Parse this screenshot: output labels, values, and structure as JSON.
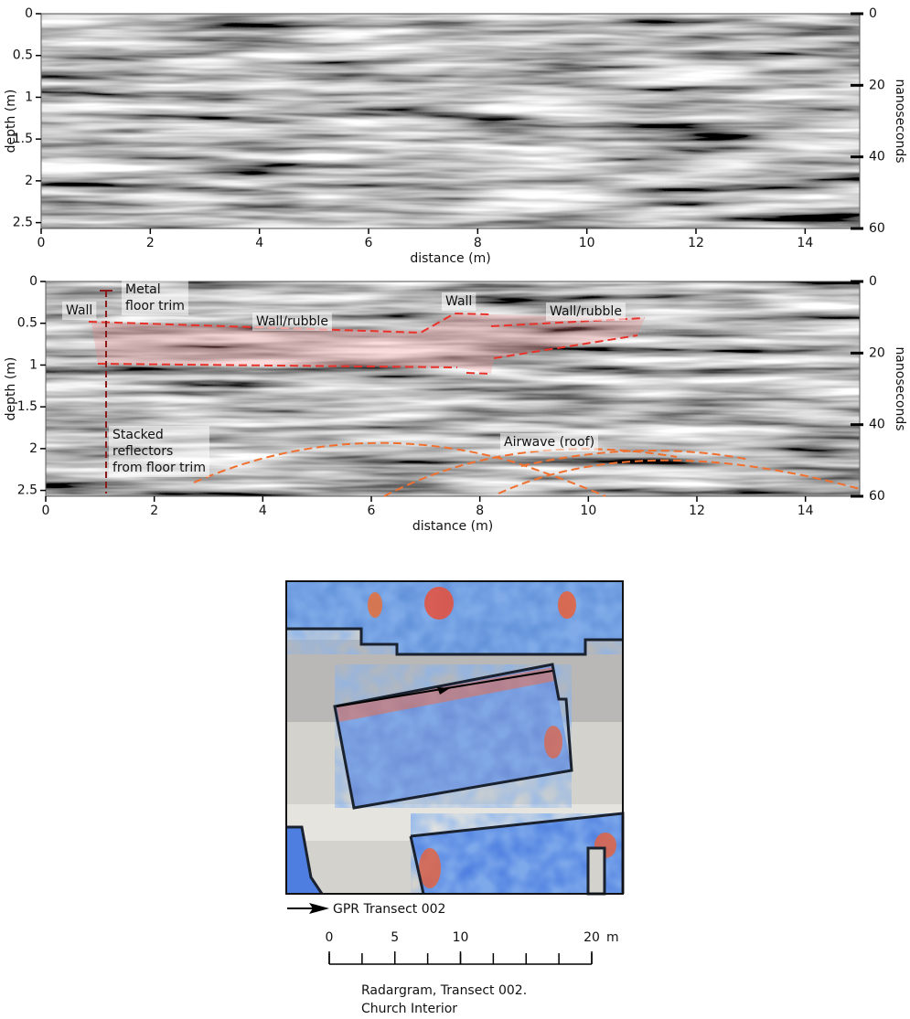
{
  "panels": [
    {
      "xlabel": "distance (m)",
      "ylabel": "depth (m)",
      "y2label": "nanoseconds",
      "xlim": [
        0,
        15
      ],
      "xticks": [
        0,
        2,
        4,
        6,
        8,
        10,
        12,
        14
      ],
      "ylim": [
        0,
        2.57
      ],
      "yticks": [
        0,
        0.5,
        1,
        1.5,
        2,
        2.5
      ],
      "y2lim": [
        0,
        60
      ],
      "y2ticks": [
        0,
        20,
        40,
        60
      ]
    },
    {
      "xlabel": "distance (m)",
      "ylabel": "depth (m)",
      "y2label": "nanoseconds",
      "xlim": [
        0,
        15
      ],
      "xticks": [
        0,
        2,
        4,
        6,
        8,
        10,
        12,
        14
      ],
      "ylim": [
        0,
        2.57
      ],
      "yticks": [
        0,
        0.5,
        1,
        1.5,
        2,
        2.5
      ],
      "y2lim": [
        0,
        60
      ],
      "y2ticks": [
        0,
        20,
        40,
        60
      ],
      "annotations": [
        {
          "lines": [
            "Wall"
          ]
        },
        {
          "lines": [
            "Metal",
            "floor trim"
          ]
        },
        {
          "lines": [
            "Wall/rubble"
          ]
        },
        {
          "lines": [
            "Wall"
          ]
        },
        {
          "lines": [
            "Wall/rubble"
          ]
        },
        {
          "lines": [
            "Stacked",
            "reflectors",
            "from floor trim"
          ]
        },
        {
          "lines": [
            "Airwave (roof)"
          ]
        }
      ]
    }
  ],
  "map": {
    "legend": "GPR Transect 002",
    "scale_bar": {
      "lim": [
        0,
        20
      ],
      "ticks": [
        0,
        5,
        10,
        20
      ],
      "unit": "m"
    },
    "caption": [
      "Radargram, Transect 002.",
      "Church Interior"
    ]
  }
}
